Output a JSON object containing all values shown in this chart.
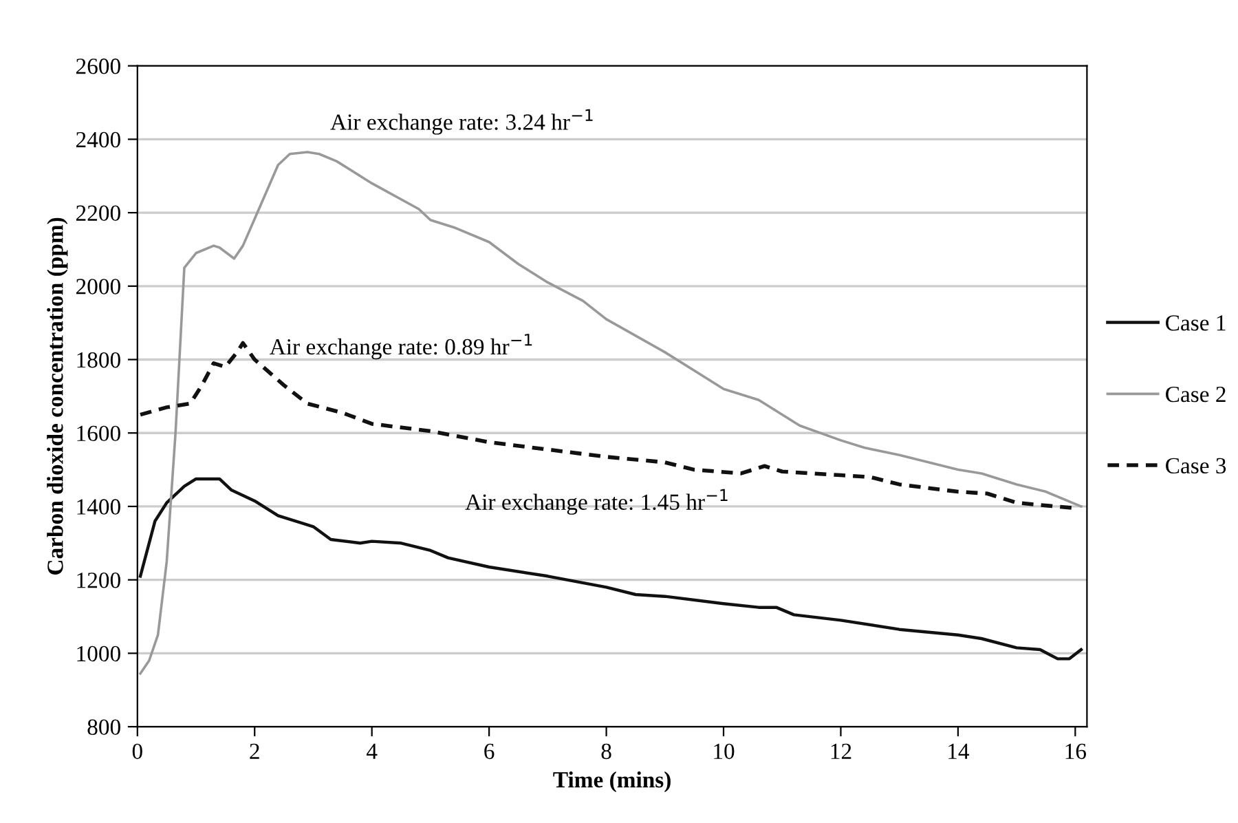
{
  "chart_data": {
    "type": "line",
    "xlabel": "Time (mins)",
    "ylabel": "Carbon dioxide concentration (ppm)",
    "xlim": [
      0,
      16.2
    ],
    "xticks": [
      0,
      2,
      4,
      6,
      8,
      10,
      12,
      14,
      16
    ],
    "ylim": [
      800,
      2600
    ],
    "yticks": [
      800,
      1000,
      1200,
      1400,
      1600,
      1800,
      2000,
      2200,
      2400,
      2600
    ],
    "grid": "y",
    "legend": "right",
    "series": [
      {
        "name": "Case 1",
        "color": "#111111",
        "line_style": "solid",
        "x": [
          0.05,
          0.3,
          0.5,
          0.8,
          1.0,
          1.4,
          1.6,
          2.0,
          2.4,
          3.0,
          3.3,
          3.8,
          4.0,
          4.5,
          5.0,
          5.3,
          6.0,
          7.0,
          8.0,
          8.5,
          9.0,
          10.0,
          10.6,
          10.9,
          11.2,
          12.0,
          13.0,
          14.0,
          14.4,
          15.0,
          15.4,
          15.7,
          15.9,
          16.1
        ],
        "values": [
          1210,
          1360,
          1410,
          1455,
          1475,
          1475,
          1445,
          1415,
          1375,
          1345,
          1310,
          1300,
          1305,
          1300,
          1280,
          1260,
          1235,
          1210,
          1180,
          1160,
          1155,
          1135,
          1125,
          1125,
          1105,
          1090,
          1065,
          1050,
          1040,
          1015,
          1010,
          985,
          985,
          1010
        ]
      },
      {
        "name": "Case 2",
        "color": "#999999",
        "line_style": "solid",
        "x": [
          0.05,
          0.2,
          0.35,
          0.5,
          0.65,
          0.8,
          1.0,
          1.3,
          1.4,
          1.65,
          1.8,
          2.1,
          2.4,
          2.6,
          2.9,
          3.1,
          3.4,
          4.0,
          4.8,
          5.0,
          5.4,
          6.0,
          6.5,
          7.0,
          7.6,
          8.0,
          9.0,
          10.0,
          10.6,
          11.3,
          12.0,
          12.4,
          13.0,
          14.0,
          14.4,
          15.0,
          15.5,
          16.1
        ],
        "values": [
          945,
          980,
          1050,
          1250,
          1600,
          2050,
          2090,
          2110,
          2105,
          2075,
          2110,
          2220,
          2330,
          2360,
          2365,
          2360,
          2340,
          2280,
          2210,
          2180,
          2160,
          2120,
          2060,
          2010,
          1960,
          1910,
          1820,
          1720,
          1690,
          1620,
          1580,
          1560,
          1540,
          1500,
          1490,
          1460,
          1440,
          1400
        ]
      },
      {
        "name": "Case 3",
        "color": "#111111",
        "line_style": "dashed",
        "x": [
          0.05,
          0.5,
          0.9,
          1.1,
          1.3,
          1.5,
          1.7,
          1.8,
          2.0,
          2.5,
          2.9,
          3.5,
          4.0,
          5.0,
          6.0,
          7.0,
          8.0,
          9.0,
          9.5,
          10.3,
          10.7,
          11.0,
          12.0,
          12.5,
          13.0,
          14.0,
          14.5,
          15.0,
          16.0
        ],
        "values": [
          1650,
          1670,
          1680,
          1730,
          1790,
          1780,
          1820,
          1845,
          1800,
          1730,
          1680,
          1655,
          1625,
          1605,
          1575,
          1555,
          1535,
          1520,
          1500,
          1490,
          1510,
          1495,
          1485,
          1480,
          1460,
          1440,
          1435,
          1410,
          1395
        ]
      }
    ],
    "annotations": [
      "Air exchange rate: 3.24 hr$^{−1}$",
      "Air exchange rate: 0.89 hr$^{−1}$",
      "Air exchange rate: 1.45 hr$^{−1}$"
    ]
  }
}
